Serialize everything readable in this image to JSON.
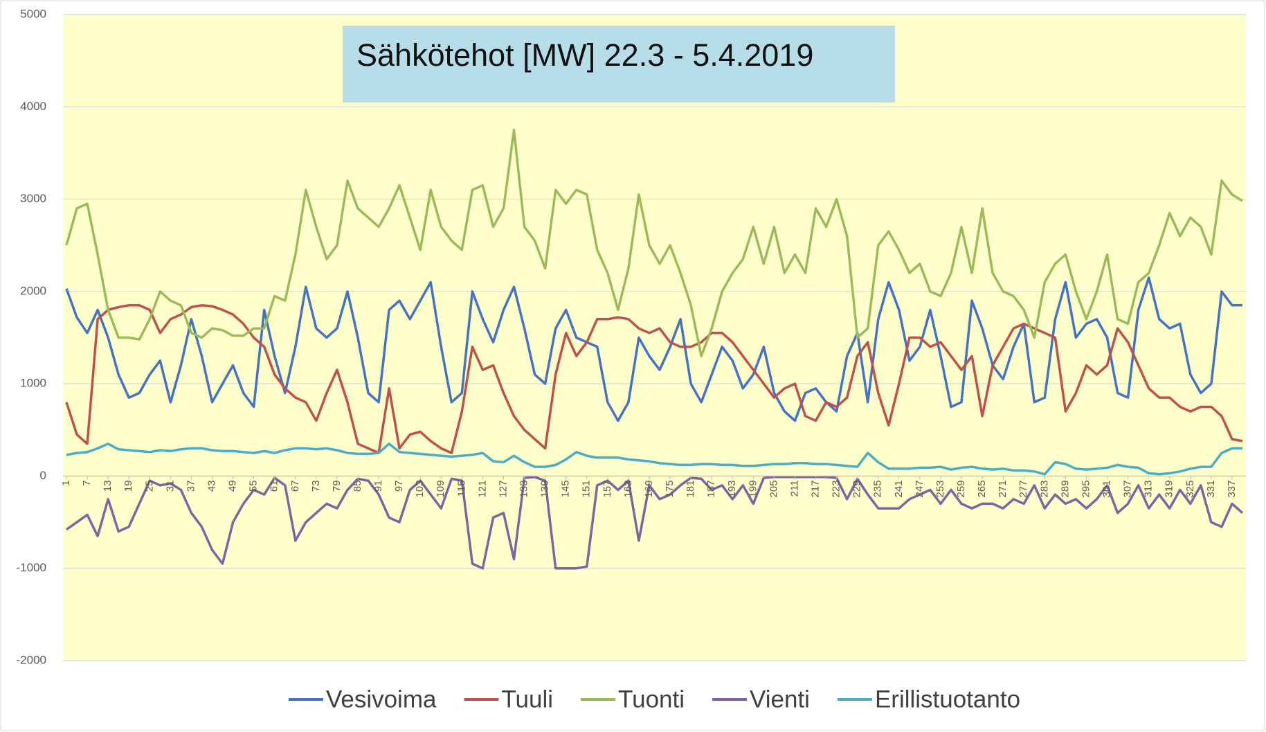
{
  "chart_data": {
    "type": "line",
    "title": "Sähkötehot [MW] 22.3 - 5.4.2019",
    "x": [
      1,
      4,
      7,
      10,
      13,
      16,
      19,
      22,
      25,
      28,
      31,
      34,
      37,
      40,
      43,
      46,
      49,
      52,
      55,
      58,
      61,
      64,
      67,
      70,
      73,
      76,
      79,
      82,
      85,
      88,
      91,
      94,
      97,
      100,
      103,
      106,
      109,
      112,
      115,
      118,
      121,
      124,
      127,
      130,
      133,
      136,
      139,
      142,
      145,
      148,
      151,
      154,
      157,
      160,
      163,
      166,
      169,
      172,
      175,
      178,
      181,
      184,
      187,
      190,
      193,
      196,
      199,
      202,
      205,
      208,
      211,
      214,
      217,
      220,
      223,
      226,
      229,
      232,
      235,
      238,
      241,
      244,
      247,
      250,
      253,
      256,
      259,
      262,
      265,
      268,
      271,
      274,
      277,
      280,
      283,
      286,
      289,
      292,
      295,
      298,
      301,
      304,
      307,
      310,
      313,
      316,
      319,
      322,
      325,
      328,
      331,
      334,
      337,
      340
    ],
    "xlim": [
      0,
      341
    ],
    "xticks": [
      1,
      7,
      13,
      19,
      25,
      31,
      37,
      43,
      49,
      55,
      61,
      67,
      73,
      79,
      85,
      91,
      97,
      103,
      109,
      115,
      121,
      127,
      133,
      139,
      145,
      151,
      157,
      163,
      169,
      175,
      181,
      187,
      193,
      199,
      205,
      211,
      217,
      223,
      229,
      235,
      241,
      247,
      253,
      259,
      265,
      271,
      277,
      283,
      289,
      295,
      301,
      307,
      313,
      319,
      325,
      331,
      337
    ],
    "ylim": [
      -2000,
      5000
    ],
    "yticks": [
      -2000,
      -1000,
      0,
      1000,
      2000,
      3000,
      4000,
      5000
    ],
    "grid": true,
    "legend": "bottom",
    "series": [
      {
        "name": "Vesivoima",
        "color": "#4472c4",
        "values": [
          2030,
          1720,
          1550,
          1800,
          1500,
          1100,
          850,
          900,
          1100,
          1250,
          800,
          1200,
          1700,
          1300,
          800,
          1000,
          1200,
          900,
          750,
          1800,
          1300,
          900,
          1400,
          2050,
          1600,
          1500,
          1600,
          2000,
          1500,
          900,
          800,
          1800,
          1900,
          1700,
          1900,
          2100,
          1400,
          800,
          900,
          2000,
          1700,
          1450,
          1800,
          2050,
          1600,
          1100,
          1000,
          1600,
          1800,
          1500,
          1450,
          1400,
          800,
          600,
          800,
          1500,
          1300,
          1150,
          1400,
          1700,
          1000,
          800,
          1100,
          1400,
          1250,
          950,
          1100,
          1400,
          900,
          700,
          600,
          900,
          950,
          800,
          700,
          1300,
          1550,
          800,
          1700,
          2100,
          1800,
          1250,
          1400,
          1800,
          1300,
          750,
          800,
          1900,
          1600,
          1200,
          1050,
          1400,
          1650,
          800,
          850,
          1700,
          2100,
          1500,
          1650,
          1700,
          1500,
          900,
          850,
          1800,
          2150,
          1700,
          1600,
          1650,
          1100,
          900,
          1000,
          2000,
          1850,
          1850
        ]
      },
      {
        "name": "Tuuli",
        "color": "#c0504d",
        "values": [
          800,
          450,
          350,
          1700,
          1800,
          1830,
          1850,
          1850,
          1800,
          1550,
          1700,
          1750,
          1830,
          1850,
          1840,
          1800,
          1750,
          1650,
          1500,
          1400,
          1100,
          950,
          850,
          800,
          600,
          900,
          1150,
          800,
          350,
          300,
          250,
          950,
          300,
          450,
          480,
          380,
          300,
          250,
          700,
          1400,
          1150,
          1200,
          900,
          650,
          500,
          400,
          300,
          1100,
          1550,
          1300,
          1450,
          1700,
          1700,
          1720,
          1700,
          1600,
          1550,
          1600,
          1450,
          1400,
          1400,
          1450,
          1550,
          1550,
          1450,
          1300,
          1150,
          1000,
          850,
          950,
          1000,
          650,
          600,
          800,
          750,
          850,
          1300,
          1450,
          900,
          550,
          1000,
          1500,
          1500,
          1400,
          1450,
          1300,
          1150,
          1300,
          650,
          1200,
          1400,
          1600,
          1650,
          1600,
          1550,
          1500,
          700,
          900,
          1200,
          1100,
          1200,
          1600,
          1450,
          1200,
          950,
          850,
          850,
          750,
          700,
          750,
          750,
          650,
          400,
          380
        ]
      },
      {
        "name": "Tuonti",
        "color": "#9bbb59",
        "values": [
          2500,
          2900,
          2950,
          2400,
          1800,
          1500,
          1500,
          1480,
          1700,
          2000,
          1900,
          1850,
          1550,
          1500,
          1600,
          1580,
          1520,
          1520,
          1600,
          1600,
          1950,
          1900,
          2400,
          3100,
          2700,
          2350,
          2500,
          3200,
          2900,
          2800,
          2700,
          2900,
          3150,
          2800,
          2450,
          3100,
          2700,
          2550,
          2450,
          3100,
          3150,
          2700,
          2900,
          3750,
          2700,
          2550,
          2250,
          3100,
          2950,
          3100,
          3050,
          2450,
          2200,
          1800,
          2250,
          3050,
          2500,
          2300,
          2500,
          2200,
          1850,
          1300,
          1600,
          2000,
          2200,
          2350,
          2700,
          2300,
          2700,
          2200,
          2400,
          2200,
          2900,
          2700,
          3000,
          2600,
          1500,
          1600,
          2500,
          2650,
          2450,
          2200,
          2300,
          2000,
          1950,
          2200,
          2700,
          2200,
          2900,
          2200,
          2000,
          1950,
          1800,
          1500,
          2100,
          2300,
          2400,
          2000,
          1700,
          2000,
          2400,
          1700,
          1650,
          2100,
          2200,
          2500,
          2850,
          2600,
          2800,
          2700,
          2400,
          3200,
          3050,
          2980
        ]
      },
      {
        "name": "Vienti",
        "color": "#8064a2",
        "values": [
          -580,
          -500,
          -420,
          -650,
          -250,
          -600,
          -550,
          -300,
          -50,
          -100,
          -80,
          -150,
          -400,
          -550,
          -800,
          -950,
          -500,
          -300,
          -150,
          -200,
          -20,
          -100,
          -700,
          -500,
          -400,
          -300,
          -350,
          -150,
          -30,
          -50,
          -200,
          -450,
          -500,
          -150,
          -50,
          -200,
          -350,
          -30,
          -50,
          -950,
          -1000,
          -450,
          -400,
          -900,
          -20,
          -10,
          -50,
          -1000,
          -1000,
          -1000,
          -980,
          -100,
          -50,
          -150,
          -50,
          -700,
          -100,
          -250,
          -200,
          -100,
          -20,
          -30,
          -150,
          -100,
          -250,
          -100,
          -300,
          -20,
          -10,
          -10,
          -10,
          -10,
          -10,
          -10,
          -20,
          -250,
          -30,
          -200,
          -350,
          -350,
          -350,
          -250,
          -200,
          -150,
          -300,
          -150,
          -300,
          -350,
          -300,
          -300,
          -350,
          -250,
          -300,
          -100,
          -350,
          -200,
          -300,
          -250,
          -350,
          -250,
          -100,
          -400,
          -300,
          -100,
          -350,
          -200,
          -350,
          -150,
          -300,
          -100,
          -500,
          -550,
          -300,
          -400
        ]
      },
      {
        "name": "Erillistuotanto",
        "color": "#4bacc6",
        "values": [
          230,
          250,
          260,
          300,
          350,
          290,
          280,
          270,
          260,
          280,
          270,
          290,
          300,
          300,
          280,
          270,
          270,
          260,
          250,
          270,
          250,
          280,
          300,
          300,
          290,
          300,
          280,
          250,
          240,
          240,
          250,
          350,
          260,
          250,
          240,
          230,
          220,
          210,
          220,
          230,
          250,
          160,
          150,
          220,
          150,
          100,
          100,
          120,
          180,
          260,
          220,
          200,
          200,
          200,
          180,
          170,
          160,
          140,
          130,
          120,
          120,
          130,
          130,
          120,
          120,
          110,
          110,
          120,
          130,
          130,
          140,
          140,
          130,
          130,
          120,
          110,
          100,
          250,
          150,
          80,
          80,
          80,
          90,
          90,
          100,
          70,
          90,
          100,
          80,
          70,
          80,
          60,
          60,
          50,
          20,
          150,
          130,
          80,
          70,
          80,
          90,
          120,
          100,
          90,
          30,
          20,
          30,
          50,
          80,
          100,
          100,
          250,
          300,
          300
        ]
      }
    ]
  }
}
